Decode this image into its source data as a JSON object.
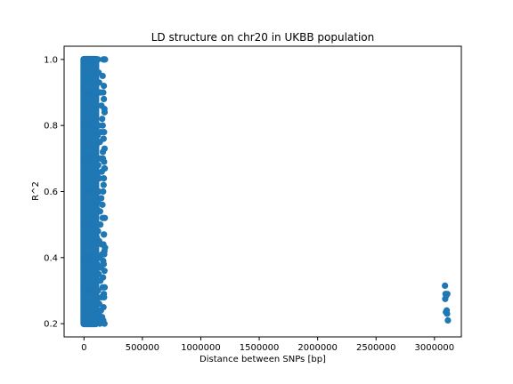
{
  "chart_data": {
    "type": "scatter",
    "title": "LD structure on chr20 in UKBB population",
    "xlabel": "Distance between SNPs [bp]",
    "ylabel": "R^2",
    "xlim": [
      -170000,
      3230000
    ],
    "ylim": [
      0.16,
      1.04
    ],
    "xticks": [
      0,
      500000,
      1000000,
      1500000,
      2000000,
      2500000,
      3000000
    ],
    "xtick_labels": [
      "0",
      "500000",
      "1000000",
      "1500000",
      "2000000",
      "2500000",
      "3000000"
    ],
    "yticks": [
      0.2,
      0.4,
      0.6,
      0.8,
      1.0
    ],
    "ytick_labels": [
      "0.2",
      "0.4",
      "0.6",
      "0.8",
      "1.0"
    ],
    "grid": false,
    "legend": "none",
    "marker_color": "#1f77b4",
    "series": [
      {
        "x": [
          0,
          5000,
          10000,
          15000,
          20000,
          25000,
          30000,
          35000,
          40000,
          45000,
          50000,
          55000,
          60000,
          65000,
          70000,
          75000,
          80000,
          85000,
          90000,
          95000,
          100000,
          0,
          5000,
          10000,
          15000,
          20000,
          25000,
          30000,
          35000,
          40000,
          45000,
          50000,
          55000,
          60000,
          65000,
          70000,
          75000,
          80000,
          85000,
          90000,
          95000,
          100000,
          0,
          10000,
          20000,
          30000,
          40000,
          50000,
          60000,
          70000,
          80000,
          90000,
          0,
          10000,
          20000,
          30000,
          40000,
          50000,
          60000,
          70000,
          80000,
          90000,
          0,
          10000,
          20000,
          30000,
          40000,
          50000,
          60000,
          70000,
          80000,
          90000,
          0,
          10000,
          20000,
          30000,
          40000,
          50000,
          60000,
          70000,
          80000,
          90000,
          0,
          10000,
          20000,
          30000,
          40000,
          50000,
          60000,
          70000,
          80000,
          90000,
          0,
          10000,
          20000,
          30000,
          40000,
          50000,
          60000,
          70000,
          80000,
          90000,
          0,
          10000,
          20000,
          30000,
          40000,
          50000,
          60000,
          70000,
          80000,
          90000,
          105000,
          110000,
          115000,
          120000,
          125000,
          130000,
          140000,
          150000,
          160000,
          165000,
          170000,
          175000,
          180000,
          105000,
          115000,
          125000,
          135000,
          145000,
          155000,
          165000,
          175000,
          110000,
          120000,
          130000,
          140000,
          150000,
          160000,
          170000,
          105000,
          115000,
          125000,
          135000,
          145000,
          155000,
          165000,
          175000,
          110000,
          120000,
          130000,
          140000,
          150000,
          160000,
          170000,
          180000,
          108000,
          118000,
          128000,
          138000,
          148000,
          158000,
          168000,
          112000,
          122000,
          132000,
          142000,
          152000,
          162000,
          172000,
          178000,
          106000,
          116000,
          126000,
          136000,
          146000,
          156000,
          166000,
          176000,
          165000,
          170000,
          175000,
          160000,
          172000,
          168000,
          176000,
          162000,
          174000,
          170000,
          164000,
          178000,
          171000,
          166000,
          173000,
          169000,
          175000,
          163000,
          177000,
          172000,
          167000,
          3090000,
          3095000,
          3100000,
          3110000,
          3092000,
          3105000,
          3098000,
          3108000,
          3115000
        ],
        "y": [
          1.0,
          1.0,
          1.0,
          1.0,
          1.0,
          1.0,
          1.0,
          1.0,
          1.0,
          1.0,
          1.0,
          1.0,
          1.0,
          1.0,
          1.0,
          1.0,
          1.0,
          1.0,
          1.0,
          1.0,
          1.0,
          0.2,
          0.2,
          0.2,
          0.2,
          0.2,
          0.2,
          0.2,
          0.2,
          0.2,
          0.2,
          0.2,
          0.2,
          0.2,
          0.2,
          0.2,
          0.2,
          0.2,
          0.2,
          0.2,
          0.2,
          0.2,
          0.3,
          0.3,
          0.3,
          0.3,
          0.3,
          0.3,
          0.3,
          0.3,
          0.3,
          0.3,
          0.4,
          0.4,
          0.4,
          0.4,
          0.4,
          0.4,
          0.4,
          0.4,
          0.4,
          0.4,
          0.5,
          0.5,
          0.5,
          0.5,
          0.5,
          0.5,
          0.5,
          0.5,
          0.5,
          0.5,
          0.6,
          0.6,
          0.6,
          0.6,
          0.6,
          0.6,
          0.6,
          0.6,
          0.6,
          0.6,
          0.7,
          0.7,
          0.7,
          0.7,
          0.7,
          0.7,
          0.7,
          0.7,
          0.7,
          0.7,
          0.8,
          0.8,
          0.8,
          0.8,
          0.8,
          0.8,
          0.8,
          0.8,
          0.8,
          0.8,
          0.9,
          0.9,
          0.9,
          0.9,
          0.9,
          0.9,
          0.9,
          0.9,
          0.9,
          0.9,
          1.0,
          1.0,
          1.0,
          1.0,
          0.96,
          0.93,
          0.9,
          0.86,
          0.95,
          1.0,
          0.92,
          1.0,
          1.0,
          0.22,
          0.21,
          0.23,
          0.2,
          0.24,
          0.22,
          0.21,
          0.2,
          0.27,
          0.3,
          0.26,
          0.33,
          0.28,
          0.31,
          0.29,
          0.36,
          0.38,
          0.35,
          0.4,
          0.37,
          0.41,
          0.39,
          0.42,
          0.46,
          0.48,
          0.45,
          0.5,
          0.44,
          0.52,
          0.47,
          0.43,
          0.55,
          0.57,
          0.6,
          0.54,
          0.58,
          0.56,
          0.62,
          0.65,
          0.68,
          0.64,
          0.7,
          0.66,
          0.72,
          0.69,
          0.67,
          0.74,
          0.77,
          0.8,
          0.75,
          0.78,
          0.82,
          0.76,
          0.84,
          0.9,
          0.88,
          0.85,
          0.8,
          0.78,
          0.76,
          0.73,
          0.7,
          0.67,
          0.64,
          0.6,
          0.52,
          0.47,
          0.44,
          0.41,
          0.38,
          0.36,
          0.34,
          0.31,
          0.28,
          0.25,
          0.315,
          0.29,
          0.285,
          0.29,
          0.275,
          0.24,
          0.235,
          0.23,
          0.21
        ]
      }
    ]
  }
}
